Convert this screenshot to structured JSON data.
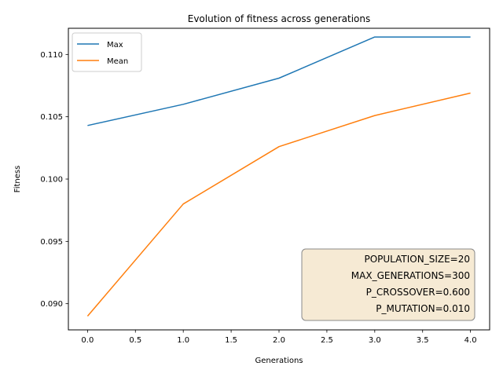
{
  "chart_data": {
    "type": "line",
    "title": "Evolution of fitness across generations",
    "xlabel": "Generations",
    "ylabel": "Fitness",
    "x": [
      0,
      1,
      2,
      3,
      4
    ],
    "xlim": [
      -0.2,
      4.2
    ],
    "ylim": [
      0.0879,
      0.1121
    ],
    "xticks": [
      0.0,
      0.5,
      1.0,
      1.5,
      2.0,
      2.5,
      3.0,
      3.5,
      4.0
    ],
    "xtick_labels": [
      "0.0",
      "0.5",
      "1.0",
      "1.5",
      "2.0",
      "2.5",
      "3.0",
      "3.5",
      "4.0"
    ],
    "yticks": [
      0.09,
      0.095,
      0.1,
      0.105,
      0.11
    ],
    "ytick_labels": [
      "0.090",
      "0.095",
      "0.100",
      "0.105",
      "0.110"
    ],
    "series": [
      {
        "name": "Max",
        "color": "#1f77b4",
        "values": [
          0.1043,
          0.106,
          0.1081,
          0.1114,
          0.1114
        ]
      },
      {
        "name": "Mean",
        "color": "#ff7f0e",
        "values": [
          0.089,
          0.098,
          0.1026,
          0.1051,
          0.1069
        ]
      }
    ],
    "legend_position": "top-left",
    "grid": false,
    "annotation": {
      "lines": [
        "POPULATION_SIZE=20",
        "MAX_GENERATIONS=300",
        "P_CROSSOVER=0.600",
        "P_MUTATION=0.010"
      ],
      "position": "bottom-right",
      "background": "#f5e6cc"
    }
  }
}
